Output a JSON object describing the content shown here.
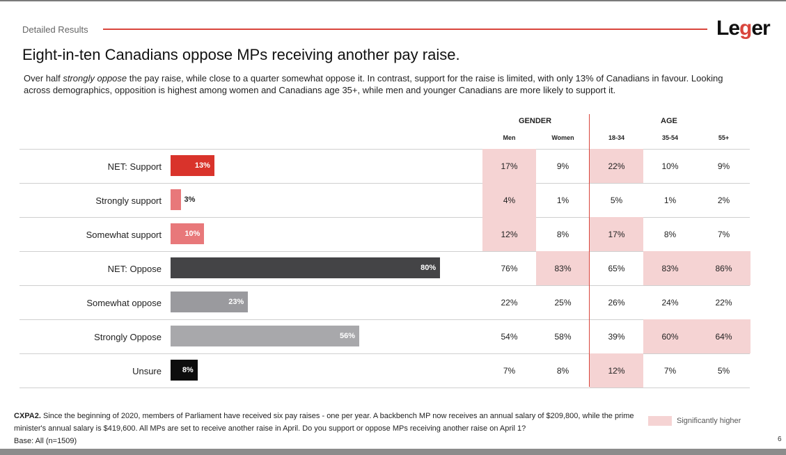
{
  "header": {
    "section": "Detailed Results",
    "logo": {
      "prefix": "Le",
      "accent": "g",
      "suffix": "er"
    },
    "title": "Eight-in-ten Canadians oppose MPs receiving another pay raise.",
    "subtitle_pre": "Over half ",
    "subtitle_em": "strongly oppose",
    "subtitle_post": " the pay raise, while close to a quarter somewhat oppose it. In contrast, support for the raise is limited, with only 13% of Canadians in favour. Looking across demographics, opposition is highest among women and Canadians age 35+, while men and younger Canadians are more likely to support it."
  },
  "colors": {
    "accent": "#d9453c",
    "significant": "#f5d3d3"
  },
  "chart_data": {
    "type": "bar",
    "orientation": "horizontal",
    "xlim": [
      0,
      100
    ],
    "categories": [
      "NET: Support",
      "Strongly support",
      "Somewhat support",
      "NET: Oppose",
      "Somewhat oppose",
      "Strongly Oppose",
      "Unsure"
    ],
    "values": [
      13,
      3,
      10,
      80,
      23,
      56,
      8
    ],
    "value_labels": [
      "13%",
      "3%",
      "10%",
      "80%",
      "23%",
      "56%",
      "8%"
    ],
    "bar_colors": [
      "#d9332b",
      "#e8787a",
      "#e8787a",
      "#444446",
      "#9a9a9e",
      "#a8a8ab",
      "#0d0d0d"
    ]
  },
  "table": {
    "groups": [
      {
        "label": "GENDER",
        "columns": [
          "Men",
          "Women"
        ]
      },
      {
        "label": "AGE",
        "columns": [
          "18-34",
          "35-54",
          "55+"
        ]
      }
    ],
    "columns": [
      "Men",
      "Women",
      "18-34",
      "35-54",
      "55+"
    ],
    "rows": [
      {
        "values": [
          "17%",
          "9%",
          "22%",
          "10%",
          "9%"
        ],
        "significant": [
          true,
          false,
          true,
          false,
          false
        ]
      },
      {
        "values": [
          "4%",
          "1%",
          "5%",
          "1%",
          "2%"
        ],
        "significant": [
          true,
          false,
          false,
          false,
          false
        ]
      },
      {
        "values": [
          "12%",
          "8%",
          "17%",
          "8%",
          "7%"
        ],
        "significant": [
          true,
          false,
          true,
          false,
          false
        ]
      },
      {
        "values": [
          "76%",
          "83%",
          "65%",
          "83%",
          "86%"
        ],
        "significant": [
          false,
          true,
          false,
          true,
          true
        ]
      },
      {
        "values": [
          "22%",
          "25%",
          "26%",
          "24%",
          "22%"
        ],
        "significant": [
          false,
          false,
          false,
          false,
          false
        ]
      },
      {
        "values": [
          "54%",
          "58%",
          "39%",
          "60%",
          "64%"
        ],
        "significant": [
          false,
          false,
          false,
          true,
          true
        ]
      },
      {
        "values": [
          "7%",
          "8%",
          "12%",
          "7%",
          "5%"
        ],
        "significant": [
          false,
          false,
          true,
          false,
          false
        ]
      }
    ]
  },
  "footnote": {
    "code": "CXPA2.",
    "question": " Since the beginning of 2020, members of Parliament have received six pay raises - one per year. A backbench MP now receives an annual salary of $209,800, while the prime minister's annual salary is $419,600. All MPs are set to receive another raise in April. Do you support or oppose MPs receiving another raise on April 1?",
    "base": "Base: All (n=1509)"
  },
  "legend": {
    "label": "Significantly higher"
  },
  "page_number": "6"
}
